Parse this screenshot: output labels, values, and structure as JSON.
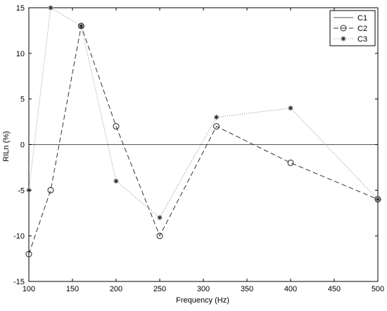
{
  "chart_data": {
    "type": "line",
    "title": "",
    "xlabel": "Frequency (Hz)",
    "ylabel": "RILn (%)",
    "xlim": [
      100,
      500
    ],
    "ylim": [
      -15,
      15
    ],
    "xticks": [
      100,
      150,
      200,
      250,
      300,
      350,
      400,
      450,
      500
    ],
    "yticks": [
      -15,
      -10,
      -5,
      0,
      5,
      10,
      15
    ],
    "grid": false,
    "legend_position": "top-right",
    "series": [
      {
        "name": "C1",
        "style": "solid",
        "marker": "none",
        "x": [
          100,
          500
        ],
        "y": [
          0,
          0
        ]
      },
      {
        "name": "C2",
        "style": "dashed",
        "marker": "circle",
        "x": [
          100,
          125,
          160,
          200,
          250,
          315,
          400,
          500
        ],
        "y": [
          -12,
          -5,
          13,
          2,
          -10,
          2,
          -2,
          -6
        ]
      },
      {
        "name": "C3",
        "style": "dotted",
        "marker": "asterisk",
        "x": [
          100,
          125,
          160,
          200,
          250,
          315,
          400,
          500
        ],
        "y": [
          -5,
          15,
          13,
          -4,
          -8,
          3,
          4,
          -6
        ]
      }
    ]
  }
}
